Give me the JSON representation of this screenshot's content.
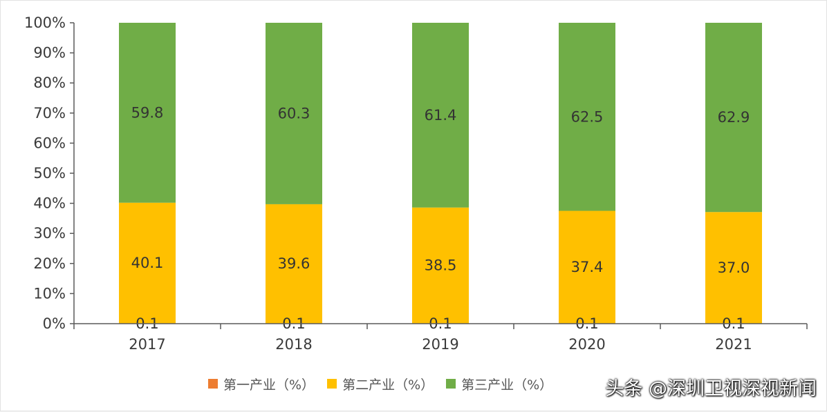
{
  "chart_data": {
    "type": "bar",
    "stacked": true,
    "categories": [
      "2017",
      "2018",
      "2019",
      "2020",
      "2021"
    ],
    "series": [
      {
        "name": "第一产业（%）",
        "color": "#ed7d31",
        "values": [
          0.1,
          0.1,
          0.1,
          0.1,
          0.1
        ]
      },
      {
        "name": "第二产业（%）",
        "color": "#ffc000",
        "values": [
          40.1,
          39.6,
          38.5,
          37.4,
          37.0
        ]
      },
      {
        "name": "第三产业（%）",
        "color": "#70ad47",
        "values": [
          59.8,
          60.3,
          61.4,
          62.5,
          62.9
        ]
      }
    ],
    "y_ticks": [
      "0%",
      "10%",
      "20%",
      "30%",
      "40%",
      "50%",
      "60%",
      "70%",
      "80%",
      "90%",
      "100%"
    ],
    "ylim": [
      0,
      100
    ],
    "grid": false,
    "legend_position": "bottom",
    "title": "",
    "xlabel": "",
    "ylabel": ""
  },
  "watermark": "头条 @深圳卫视深视新闻"
}
